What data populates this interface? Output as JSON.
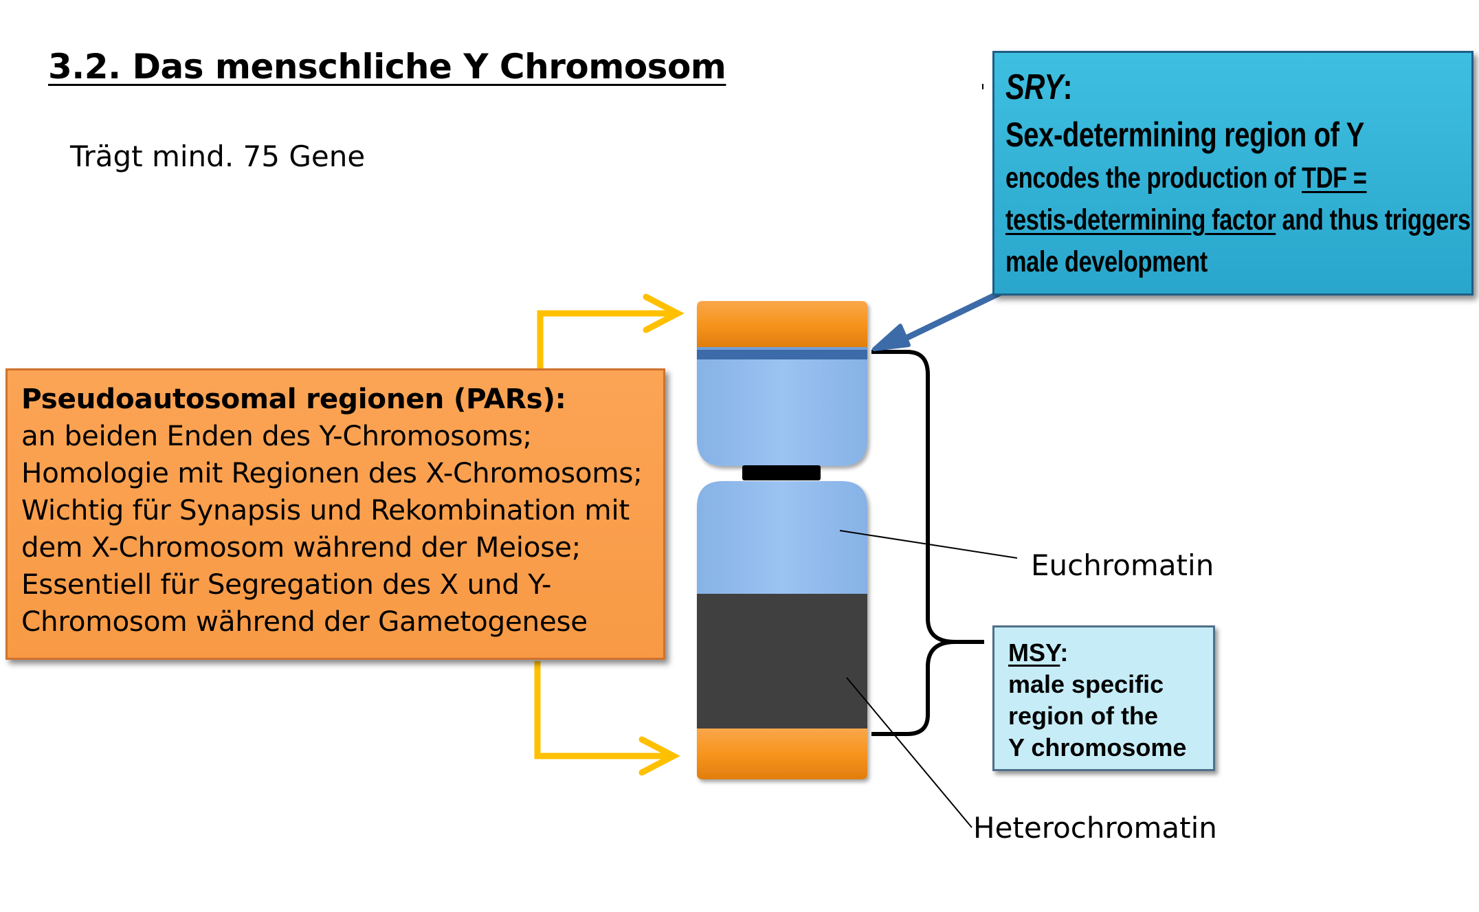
{
  "title": "3.2. Das menschliche Y Chromosom",
  "subtitle": "Trägt mind. 75 Gene",
  "par_box": {
    "heading": "Pseudoautosomal regionen (PARs):",
    "lines": [
      "an beiden Enden des Y-Chromosoms;",
      "Homologie mit Regionen des X-Chromosoms;",
      "Wichtig für Synapsis und Rekombination mit",
      "dem X-Chromosom während der Meiose;",
      "Essentiell für Segregation des X und Y-",
      "Chromosom während der Gametogenese"
    ]
  },
  "sry_box": {
    "title": "SRY",
    "title_suffix": ":",
    "name": "Sex-determining  region of Y",
    "line1_plain": "encodes  the production of ",
    "line1_ul": "TDF =",
    "line2_ul": "testis-determining factor",
    "line2_plain": " and thus triggers",
    "line3": "male development"
  },
  "msy_box": {
    "title": "MSY",
    "title_suffix": ":",
    "lines": [
      "male specific",
      "region  of the",
      "Y chromosome"
    ]
  },
  "labels": {
    "euchromatin": "Euchromatin",
    "heterochromatin": "Heterochromatin"
  },
  "colors": {
    "par_orange": "#f89a45",
    "chromosome_orange": "#f7941d",
    "euchromatin_blue": "#95bfef",
    "heterochromatin_gray": "#404040",
    "arrow_yellow": "#ffc000",
    "sry_arrow_blue": "#3d6ba8",
    "sry_box_blue": "#2fb0d6",
    "msy_box_blue": "#c6ecf7"
  }
}
